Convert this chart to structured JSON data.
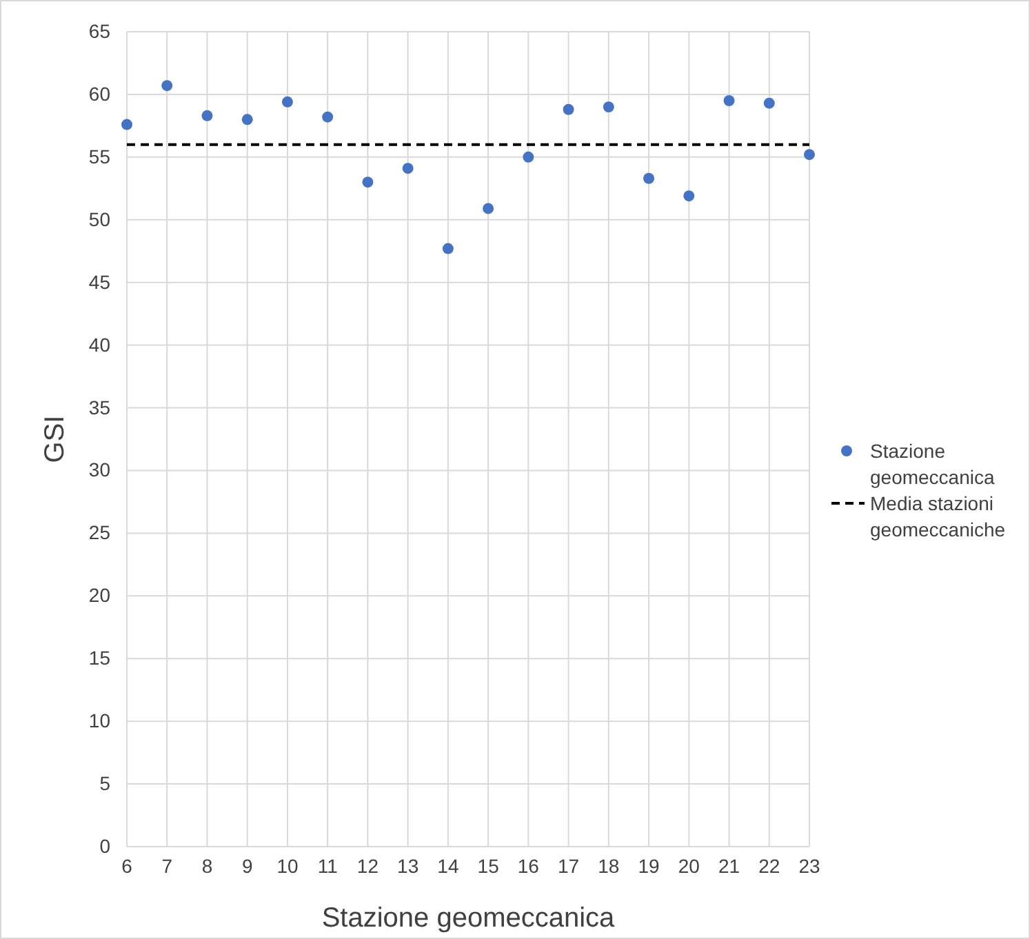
{
  "chart_data": {
    "type": "scatter",
    "xlabel": "Stazione geomeccanica",
    "ylabel": "GSI",
    "x": [
      6,
      7,
      8,
      9,
      10,
      11,
      12,
      13,
      14,
      15,
      16,
      17,
      18,
      19,
      20,
      21,
      22,
      23
    ],
    "series": [
      {
        "name": "Stazione geomeccanica",
        "color": "#4472c4",
        "values": [
          57.6,
          60.7,
          58.3,
          58.0,
          59.4,
          58.2,
          53.0,
          54.1,
          47.7,
          50.9,
          55.0,
          58.8,
          59.0,
          53.3,
          51.9,
          59.5,
          59.3,
          55.2
        ]
      }
    ],
    "ref_lines": [
      {
        "axis": "y",
        "value": 56.0,
        "label": "Media stazioni geomeccaniche",
        "color": "#000000",
        "line_style": "dashed"
      }
    ],
    "xlim": [
      6,
      23
    ],
    "xticks": [
      6,
      7,
      8,
      9,
      10,
      11,
      12,
      13,
      14,
      15,
      16,
      17,
      18,
      19,
      20,
      21,
      22,
      23
    ],
    "ylim": [
      0,
      65
    ],
    "yticks": [
      0,
      5,
      10,
      15,
      20,
      25,
      30,
      35,
      40,
      45,
      50,
      55,
      60,
      65
    ],
    "grid": true,
    "legend": "right",
    "marker": "circle"
  }
}
